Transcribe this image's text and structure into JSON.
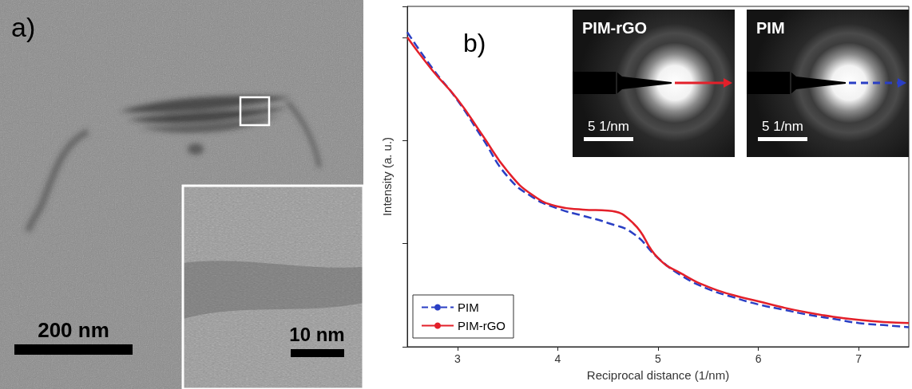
{
  "image_panel": {
    "label": "a)",
    "scale_bar": "200 nm",
    "inset_scale_bar": "10 nm"
  },
  "chart_data": {
    "type": "line",
    "panel_label": "b)",
    "xlabel": "Reciprocal distance (1/nm)",
    "ylabel": "Intensity (a. u.)",
    "xlim": [
      2.5,
      7.5
    ],
    "xticks": [
      3,
      4,
      5,
      6,
      7
    ],
    "ylim": [
      0,
      3.3
    ],
    "yticks": [
      0,
      1,
      2,
      3
    ],
    "tick_labels": "x",
    "legend": "lower left",
    "x": [
      2.5,
      2.75,
      3,
      3.25,
      3.5,
      3.75,
      4,
      4.25,
      4.5,
      4.75,
      5,
      5.25,
      5.5,
      5.75,
      6,
      6.25,
      6.5,
      6.75,
      7,
      7.25,
      7.5
    ],
    "series": [
      {
        "name": "PIM",
        "color": "#2a3fc4",
        "line_style": "dashed",
        "values": [
          3.05,
          2.7,
          2.39,
          2.02,
          1.65,
          1.45,
          1.34,
          1.27,
          1.2,
          1.1,
          0.86,
          0.68,
          0.56,
          0.48,
          0.41,
          0.36,
          0.31,
          0.27,
          0.23,
          0.21,
          0.19
        ]
      },
      {
        "name": "PIM-rGO",
        "color": "#e3202a",
        "line_style": "solid",
        "values": [
          3.0,
          2.68,
          2.4,
          2.05,
          1.7,
          1.47,
          1.36,
          1.33,
          1.32,
          1.2,
          0.86,
          0.7,
          0.58,
          0.5,
          0.44,
          0.38,
          0.33,
          0.29,
          0.26,
          0.24,
          0.23
        ]
      }
    ],
    "insets": [
      {
        "label": "PIM-rGO",
        "scale_bar": "5 1/nm",
        "series": "PIM-rGO"
      },
      {
        "label": "PIM",
        "scale_bar": "5 1/nm",
        "series": "PIM"
      }
    ]
  }
}
